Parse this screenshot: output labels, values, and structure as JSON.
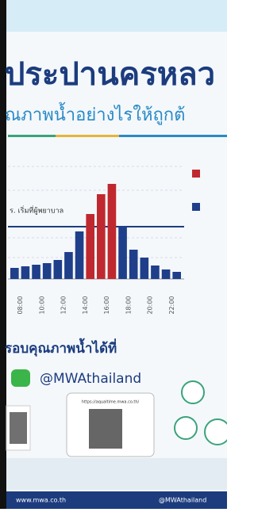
{
  "header": {
    "title": "ประปานครหลว",
    "subtitle": "ณภาพน้ำอย่างไรให้ถูกต้"
  },
  "chart": {
    "note": "ร. เริ่มที่ผู้พยาบาล",
    "labels": [
      "08:00",
      "10:00",
      "12:00",
      "14:00",
      "16:00",
      "18:00",
      "20:00",
      "22:00"
    ],
    "values": [
      14,
      16,
      18,
      20,
      24,
      34,
      60,
      82,
      107,
      120,
      67,
      37,
      27,
      17,
      12,
      9
    ],
    "colors": [
      "#1f3f8a",
      "#1f3f8a",
      "#1f3f8a",
      "#1f3f8a",
      "#1f3f8a",
      "#1f3f8a",
      "#1f3f8a",
      "#c0282f",
      "#c0282f",
      "#c0282f",
      "#1f3f8a",
      "#1f3f8a",
      "#1f3f8a",
      "#1f3f8a",
      "#1f3f8a",
      "#1f3f8a"
    ]
  },
  "contact": {
    "heading": "รอบคุณภาพน้ำได้ที่",
    "line": "@MWAthailand",
    "url": "https://aqualtime.mwa.co.th/"
  },
  "footer": {
    "site": "www.mwa.co.th",
    "handle": "@MWAthailand"
  }
}
